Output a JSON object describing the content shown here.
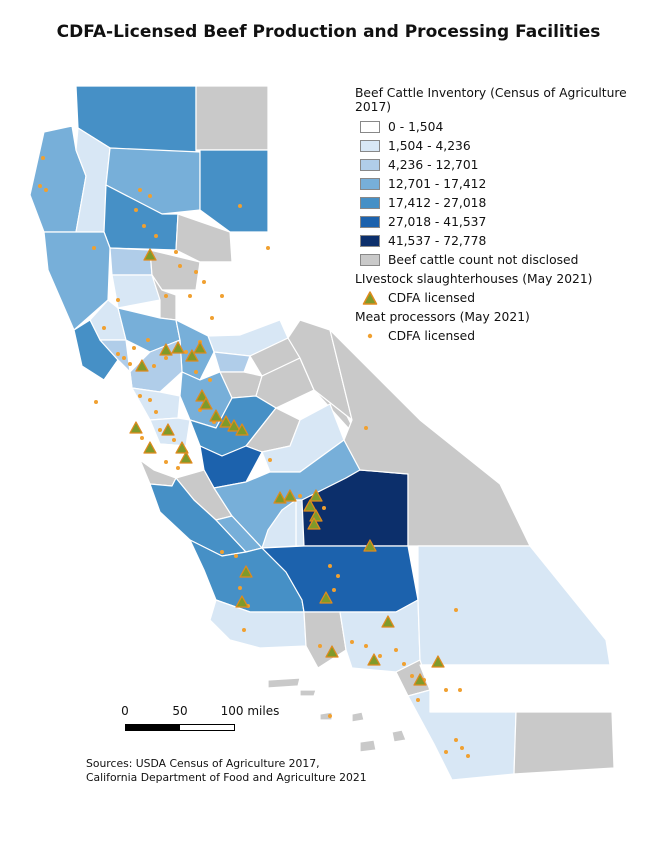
{
  "title": "CDFA-Licensed Beef Production and Processing Facilities",
  "legend": {
    "inventory_title": "Beef Cattle Inventory (Census of Agriculture 2017)",
    "classes": [
      {
        "label": "0 - 1,504",
        "color": "#ffffff"
      },
      {
        "label": "1,504 - 4,236",
        "color": "#d8e7f5"
      },
      {
        "label": "4,236 - 12,701",
        "color": "#b0cde9"
      },
      {
        "label": "12,701 - 17,412",
        "color": "#77afd9"
      },
      {
        "label": "17,412 - 27,018",
        "color": "#4690c6"
      },
      {
        "label": "27,018 - 41,537",
        "color": "#1c62ad"
      },
      {
        "label": "41,537 - 72,778",
        "color": "#0c2f6b"
      },
      {
        "label": "Beef cattle count not disclosed",
        "color": "#c9c9c9"
      }
    ],
    "slaughter_title": "LIvestock slaughterhouses (May 2021)",
    "slaughter_label": "CDFA licensed",
    "processor_title": "Meat processors (May 2021)",
    "processor_label": "CDFA licensed"
  },
  "scale": {
    "labels": [
      "0",
      "50",
      "100 miles"
    ]
  },
  "sources": {
    "line1": "Sources: USDA Census of Agriculture 2017,",
    "line2": "California Department of Food and Agriculture 2021"
  },
  "colors": {
    "slaughter_fill": "#7f9a2a",
    "slaughter_stroke": "#e08a1e",
    "processor_dot": "#f0a030",
    "county_border": "#ffffff",
    "state_outline": "#ffffff"
  }
}
